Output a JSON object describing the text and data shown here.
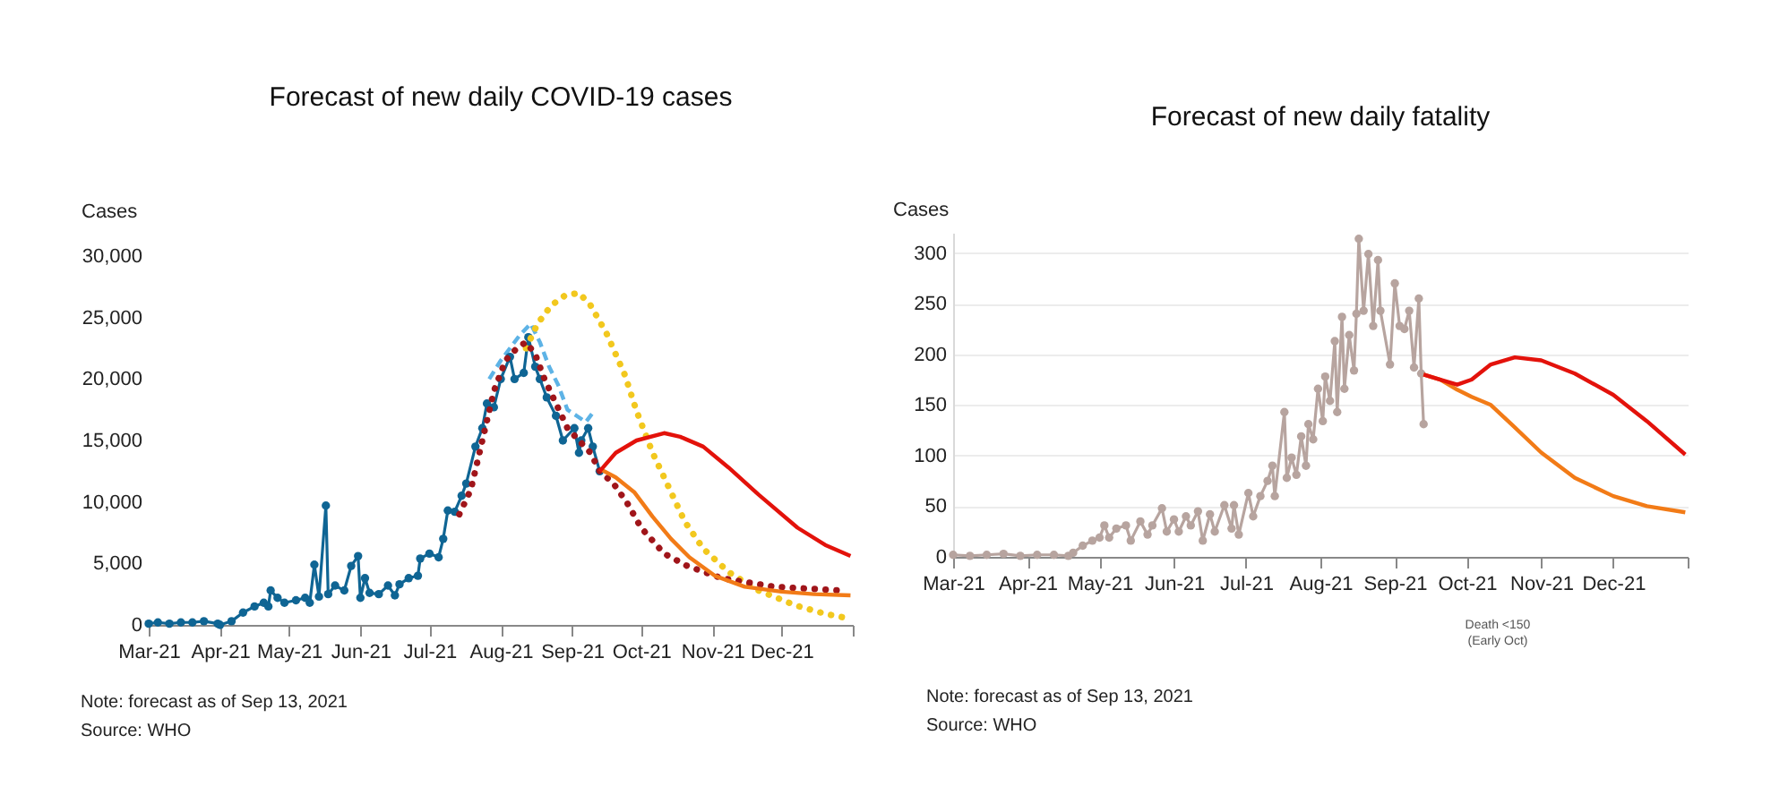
{
  "chart_data": [
    {
      "type": "line",
      "title": "Forecast of new daily COVID-19 cases",
      "ylabel": "Cases",
      "xlim": [
        "2021-03-01",
        "2022-01-01"
      ],
      "xticks": [
        {
          "value": "2021-03-01",
          "label": "Mar-21"
        },
        {
          "value": "2021-04-01",
          "label": "Apr-21"
        },
        {
          "value": "2021-05-01",
          "label": "May-21"
        },
        {
          "value": "2021-06-01",
          "label": "Jun-21"
        },
        {
          "value": "2021-07-01",
          "label": "Jul-21"
        },
        {
          "value": "2021-08-01",
          "label": "Aug-21"
        },
        {
          "value": "2021-09-01",
          "label": "Sep-21"
        },
        {
          "value": "2021-10-01",
          "label": "Oct-21"
        },
        {
          "value": "2021-11-01",
          "label": "Nov-21"
        },
        {
          "value": "2021-12-01",
          "label": "Dec-21"
        },
        {
          "value": "2022-01-01",
          "label": null
        }
      ],
      "ylim": [
        0,
        30000
      ],
      "yticks": [
        0,
        {
          "value": 5000,
          "label": "5,000"
        },
        {
          "value": 10000,
          "label": "10,000"
        },
        {
          "value": 15000,
          "label": "15,000"
        },
        {
          "value": 20000,
          "label": "20,000"
        },
        {
          "value": 25000,
          "label": "25,000"
        },
        {
          "value": 30000,
          "label": "30,000"
        }
      ],
      "annotations": [
        "Note: forecast as of Sep 13, 2021",
        "Source: WHO"
      ],
      "series": [
        {
          "color": "#5db3e6",
          "line_style": "dashed",
          "x": [
            "2021-07-27",
            "2021-08-01",
            "2021-08-05",
            "2021-08-09",
            "2021-08-14",
            "2021-08-18",
            "2021-08-22",
            "2021-08-26",
            "2021-08-30",
            "2021-09-03",
            "2021-09-07",
            "2021-09-11"
          ],
          "values": [
            20000,
            21500,
            22500,
            23500,
            24500,
            23000,
            21000,
            19500,
            17500,
            17000,
            16500,
            17500
          ]
        },
        {
          "color": "#0f6594",
          "marker": "circle",
          "line_style": "solid",
          "x": [
            "2021-03-01",
            "2021-03-05",
            "2021-03-10",
            "2021-03-15",
            "2021-03-20",
            "2021-03-25",
            "2021-03-31",
            "2021-04-01",
            "2021-04-06",
            "2021-04-11",
            "2021-04-16",
            "2021-04-20",
            "2021-04-22",
            "2021-04-23",
            "2021-04-26",
            "2021-04-29",
            "2021-05-04",
            "2021-05-08",
            "2021-05-10",
            "2021-05-12",
            "2021-05-14",
            "2021-05-17",
            "2021-05-18",
            "2021-05-21",
            "2021-05-25",
            "2021-05-28",
            "2021-05-31",
            "2021-06-01",
            "2021-06-03",
            "2021-06-05",
            "2021-06-09",
            "2021-06-13",
            "2021-06-16",
            "2021-06-18",
            "2021-06-22",
            "2021-06-26",
            "2021-06-27",
            "2021-07-01",
            "2021-07-05",
            "2021-07-07",
            "2021-07-09",
            "2021-07-12",
            "2021-07-15",
            "2021-07-17",
            "2021-07-21",
            "2021-07-24",
            "2021-07-26",
            "2021-07-29",
            "2021-08-01",
            "2021-08-05",
            "2021-08-07",
            "2021-08-11",
            "2021-08-13",
            "2021-08-16",
            "2021-08-18",
            "2021-08-21",
            "2021-08-25",
            "2021-08-28",
            "2021-09-02",
            "2021-09-04",
            "2021-09-05",
            "2021-09-08",
            "2021-09-10",
            "2021-09-13"
          ],
          "values": [
            100,
            200,
            100,
            200,
            200,
            300,
            100,
            0,
            300,
            1000,
            1500,
            1800,
            1500,
            2800,
            2200,
            1800,
            2000,
            2200,
            1800,
            4900,
            2300,
            9700,
            2500,
            3200,
            2800,
            4800,
            5600,
            2200,
            3800,
            2600,
            2500,
            3200,
            2400,
            3300,
            3800,
            4000,
            5400,
            5800,
            5500,
            7000,
            9300,
            9200,
            10500,
            11500,
            14500,
            16000,
            18000,
            17700,
            20000,
            21800,
            20000,
            20500,
            23400,
            21000,
            20000,
            18500,
            17000,
            15000,
            16000,
            14000,
            15000,
            16000,
            14500,
            12500
          ]
        },
        {
          "color": "#f2c81e",
          "line_style": "dotted",
          "x": [
            "2021-08-12",
            "2021-08-17",
            "2021-08-23",
            "2021-08-29",
            "2021-09-04",
            "2021-09-09",
            "2021-09-16",
            "2021-09-24",
            "2021-09-29",
            "2021-10-06",
            "2021-10-12",
            "2021-10-20",
            "2021-10-28",
            "2021-11-08",
            "2021-11-21",
            "2021-12-07",
            "2021-12-20",
            "2021-12-31"
          ],
          "values": [
            22500,
            24500,
            26000,
            26800,
            27000,
            26000,
            23700,
            20300,
            17400,
            14000,
            11600,
            8400,
            6200,
            4300,
            2800,
            1600,
            900,
            500
          ]
        },
        {
          "color": "#a0151a",
          "line_style": "dotted",
          "x": [
            "2021-07-14",
            "2021-07-19",
            "2021-07-24",
            "2021-07-29",
            "2021-08-03",
            "2021-08-08",
            "2021-08-12",
            "2021-08-16",
            "2021-08-20",
            "2021-08-25",
            "2021-08-30",
            "2021-09-04",
            "2021-09-09",
            "2021-09-13",
            "2021-09-19",
            "2021-09-25",
            "2021-10-01",
            "2021-10-11",
            "2021-10-21",
            "2021-11-05",
            "2021-11-28",
            "2021-12-27"
          ],
          "values": [
            9000,
            11000,
            15000,
            19000,
            21500,
            22500,
            23000,
            22000,
            20000,
            18000,
            16000,
            15000,
            14000,
            12500,
            11500,
            9900,
            7900,
            5800,
            4800,
            3800,
            3100,
            2800
          ]
        },
        {
          "color": "#f27b17",
          "line_style": "solid",
          "x": [
            "2021-09-13",
            "2021-09-20",
            "2021-09-28",
            "2021-10-06",
            "2021-10-14",
            "2021-10-22",
            "2021-11-02",
            "2021-11-15",
            "2021-12-01",
            "2021-12-15",
            "2021-12-31"
          ],
          "values": [
            12700,
            12000,
            10800,
            8800,
            7000,
            5500,
            4000,
            3100,
            2700,
            2500,
            2400
          ]
        },
        {
          "color": "#e3120b",
          "line_style": "solid",
          "x": [
            "2021-09-13",
            "2021-09-20",
            "2021-09-29",
            "2021-10-11",
            "2021-10-18",
            "2021-10-28",
            "2021-11-08",
            "2021-11-21",
            "2021-12-08",
            "2021-12-20",
            "2021-12-31"
          ],
          "values": [
            12500,
            14000,
            15000,
            15600,
            15300,
            14500,
            12800,
            10600,
            7900,
            6500,
            5600
          ]
        }
      ]
    },
    {
      "type": "line",
      "title": "Forecast of new daily fatality",
      "ylabel": "Cases",
      "grid": "y",
      "xlim": [
        "2021-03-01",
        "2022-01-01"
      ],
      "xticks": [
        {
          "value": "2021-03-01",
          "label": "Mar-21"
        },
        {
          "value": "2021-04-01",
          "label": "Apr-21"
        },
        {
          "value": "2021-05-01",
          "label": "May-21"
        },
        {
          "value": "2021-06-01",
          "label": "Jun-21"
        },
        {
          "value": "2021-07-01",
          "label": "Jul-21"
        },
        {
          "value": "2021-08-01",
          "label": "Aug-21"
        },
        {
          "value": "2021-09-01",
          "label": "Sep-21"
        },
        {
          "value": "2021-10-01",
          "label": "Oct-21"
        },
        {
          "value": "2021-11-01",
          "label": "Nov-21"
        },
        {
          "value": "2021-12-01",
          "label": "Dec-21"
        },
        {
          "value": "2022-01-01",
          "label": null
        }
      ],
      "ylim": [
        0,
        320
      ],
      "yticks": [
        0,
        50,
        100,
        150,
        200,
        250,
        300
      ],
      "annotations": [
        "Death <150\n(Early Oct)",
        "Note: forecast as of Sep 13, 2021",
        "Source: WHO"
      ],
      "series": [
        {
          "color": "#b7a49f",
          "marker": "circle",
          "line_style": "solid",
          "x": [
            "2021-03-01",
            "2021-03-08",
            "2021-03-15",
            "2021-03-22",
            "2021-03-29",
            "2021-04-05",
            "2021-04-12",
            "2021-04-18",
            "2021-04-20",
            "2021-04-24",
            "2021-04-28",
            "2021-05-01",
            "2021-05-03",
            "2021-05-05",
            "2021-05-08",
            "2021-05-12",
            "2021-05-14",
            "2021-05-18",
            "2021-05-21",
            "2021-05-23",
            "2021-05-27",
            "2021-05-29",
            "2021-06-01",
            "2021-06-03",
            "2021-06-06",
            "2021-06-08",
            "2021-06-11",
            "2021-06-13",
            "2021-06-16",
            "2021-06-18",
            "2021-06-22",
            "2021-06-25",
            "2021-06-26",
            "2021-06-28",
            "2021-07-02",
            "2021-07-04",
            "2021-07-07",
            "2021-07-10",
            "2021-07-12",
            "2021-07-13",
            "2021-07-17",
            "2021-07-18",
            "2021-07-20",
            "2021-07-22",
            "2021-07-24",
            "2021-07-26",
            "2021-07-27",
            "2021-07-29",
            "2021-07-31",
            "2021-08-02",
            "2021-08-03",
            "2021-08-05",
            "2021-08-07",
            "2021-08-08",
            "2021-08-10",
            "2021-08-11",
            "2021-08-13",
            "2021-08-15",
            "2021-08-16",
            "2021-08-17",
            "2021-08-19",
            "2021-08-21",
            "2021-08-23",
            "2021-08-25",
            "2021-08-26",
            "2021-08-30",
            "2021-09-01",
            "2021-09-03",
            "2021-09-05",
            "2021-09-07",
            "2021-09-09",
            "2021-09-11",
            "2021-09-12",
            "2021-09-13"
          ],
          "values": [
            2,
            1,
            2,
            3,
            1,
            2,
            2,
            1,
            4,
            11,
            16,
            19,
            31,
            19,
            28,
            31,
            16,
            35,
            22,
            31,
            48,
            25,
            37,
            25,
            40,
            31,
            45,
            16,
            42,
            25,
            51,
            28,
            51,
            22,
            63,
            40,
            60,
            75,
            90,
            60,
            143,
            78,
            98,
            81,
            119,
            90,
            131,
            116,
            166,
            134,
            178,
            154,
            213,
            143,
            237,
            166,
            219,
            184,
            240,
            314,
            243,
            299,
            228,
            293,
            243,
            190,
            270,
            228,
            225,
            243,
            187,
            255,
            181,
            131
          ]
        },
        {
          "color": "#f27b17",
          "line_style": "solid",
          "x": [
            "2021-09-13",
            "2021-09-20",
            "2021-09-27",
            "2021-10-03",
            "2021-10-11",
            "2021-10-20",
            "2021-11-01",
            "2021-11-15",
            "2021-12-01",
            "2021-12-15",
            "2021-12-31"
          ],
          "values": [
            180,
            175,
            165,
            158,
            150,
            130,
            103,
            78,
            60,
            50,
            44
          ]
        },
        {
          "color": "#e3120b",
          "line_style": "solid",
          "x": [
            "2021-09-13",
            "2021-09-20",
            "2021-09-27",
            "2021-10-03",
            "2021-10-11",
            "2021-10-21",
            "2021-11-01",
            "2021-11-15",
            "2021-12-01",
            "2021-12-15",
            "2021-12-31"
          ],
          "values": [
            180,
            175,
            170,
            175,
            190,
            197,
            194,
            181,
            160,
            134,
            101
          ]
        }
      ]
    }
  ]
}
